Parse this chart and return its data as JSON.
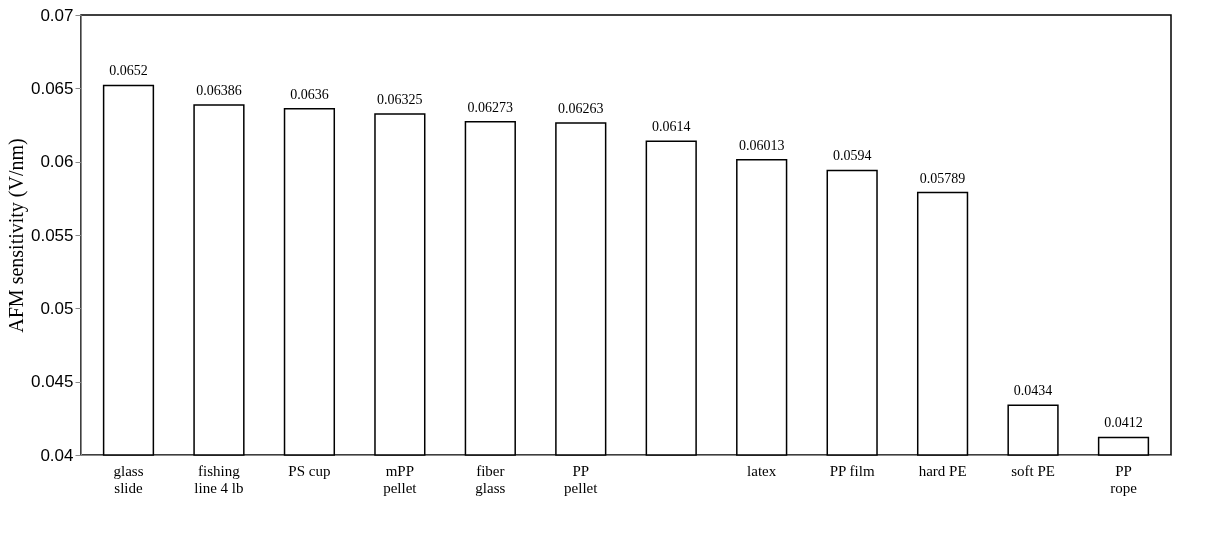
{
  "chart_data": {
    "type": "bar",
    "ylabel": "AFM sensitivity (V/nm)",
    "categories": [
      "glass\nslide",
      "fishing\nline 4 lb",
      "PS cup",
      "mPP\npellet",
      "fiber\nglass",
      "PP\npellet",
      null,
      "latex",
      "PP film",
      "hard PE",
      "soft PE",
      "PP\nrope"
    ],
    "values": [
      0.0652,
      0.06386,
      0.0636,
      0.06325,
      0.06273,
      0.06263,
      0.0614,
      0.06013,
      0.0594,
      0.05789,
      0.0434,
      0.0412
    ],
    "color": "#ffffff",
    "ylim": [
      0.04,
      0.07
    ],
    "yticks": [
      0.04,
      0.045,
      0.05,
      0.055,
      0.06,
      0.065,
      0.07
    ],
    "data_labels": true,
    "grid": false
  }
}
